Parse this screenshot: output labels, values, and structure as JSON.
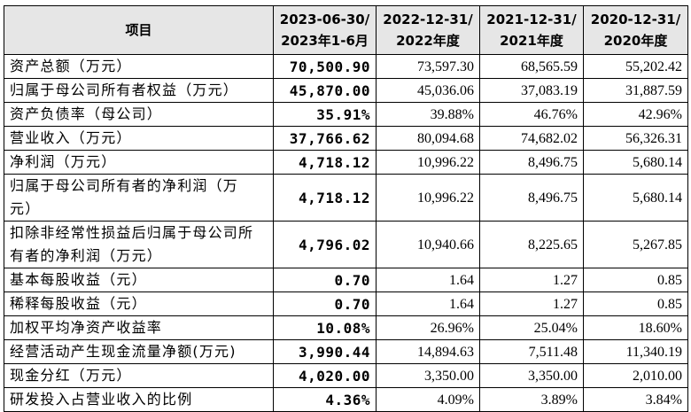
{
  "table": {
    "header": [
      [
        "项目"
      ],
      [
        "2023-06-30/",
        "2023年1-6月"
      ],
      [
        "2022-12-31/",
        "2022年度"
      ],
      [
        "2021-12-31/",
        "2021年度"
      ],
      [
        "2020-12-31/",
        "2020年度"
      ]
    ],
    "rows": [
      [
        "资产总额（万元）",
        "70,500.90",
        "73,597.30",
        "68,565.59",
        "55,202.42"
      ],
      [
        "归属于母公司所有者权益（万元）",
        "45,870.00",
        "45,036.06",
        "37,083.19",
        "31,887.59"
      ],
      [
        "资产负债率（母公司）",
        "35.91%",
        "39.88%",
        "46.76%",
        "42.96%"
      ],
      [
        "营业收入（万元）",
        "37,766.62",
        "80,094.68",
        "74,682.02",
        "56,326.31"
      ],
      [
        "净利润（万元）",
        "4,718.12",
        "10,996.22",
        "8,496.75",
        "5,680.14"
      ],
      [
        "归属于母公司所有者的净利润（万元）",
        "4,718.12",
        "10,996.22",
        "8,496.75",
        "5,680.14"
      ],
      [
        "扣除非经常性损益后归属于母公司所有者的净利润（万元）",
        "4,796.02",
        "10,940.66",
        "8,225.65",
        "5,267.85"
      ],
      [
        "基本每股收益（元）",
        "0.70",
        "1.64",
        "1.27",
        "0.85"
      ],
      [
        "稀释每股收益（元）",
        "0.70",
        "1.64",
        "1.27",
        "0.85"
      ],
      [
        "加权平均净资产收益率",
        "10.08%",
        "26.96%",
        "25.04%",
        "18.60%"
      ],
      [
        "经营活动产生现金流量净额(万元)",
        "3,990.44",
        "14,894.63",
        "7,511.48",
        "11,340.19"
      ],
      [
        "现金分红（万元）",
        "4,020.00",
        "3,350.00",
        "3,350.00",
        "2,010.00"
      ],
      [
        "研发投入占营业收入的比例",
        "4.36%",
        "4.09%",
        "3.89%",
        "3.84%"
      ]
    ]
  }
}
